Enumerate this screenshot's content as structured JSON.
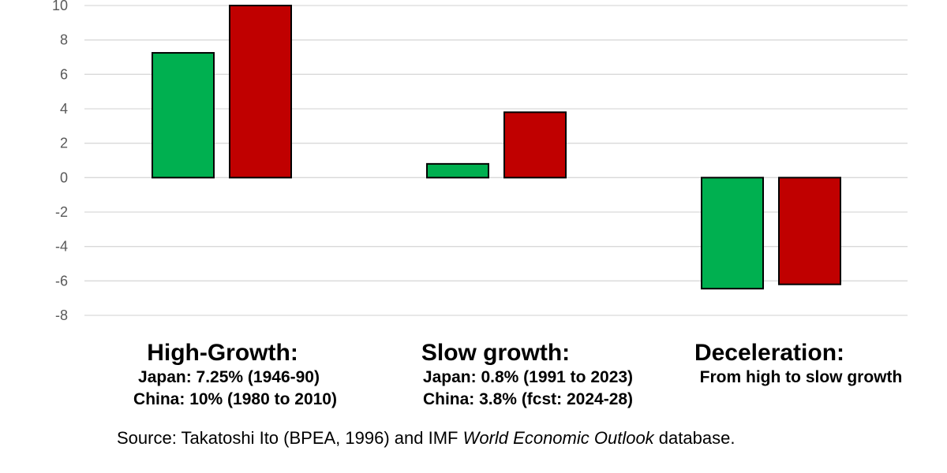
{
  "chart_data": {
    "type": "bar",
    "ylim": [
      -8,
      10
    ],
    "yticks": [
      "10",
      "8",
      "6",
      "4",
      "2",
      "0",
      "-2",
      "-4",
      "-6",
      "-8"
    ],
    "grid": true,
    "series": [
      {
        "values": [
          7.25,
          0.8,
          -6.45
        ],
        "color": "#00b050"
      },
      {
        "values": [
          10,
          3.8,
          -6.2
        ],
        "color": "#c00000"
      }
    ],
    "groups": [
      {
        "title": "High-Growth:",
        "lines": [
          "Japan: 7.25% (1946-90)",
          "China: 10% (1980 to 2010)"
        ]
      },
      {
        "title": "Slow growth:",
        "lines": [
          "Japan: 0.8% (1991 to 2023)",
          "China: 3.8% (fcst: 2024-28)"
        ]
      },
      {
        "title": "Deceleration:",
        "lines": [
          "From high to slow growth"
        ]
      }
    ]
  },
  "source": {
    "prefix": "Source: Takatoshi Ito (BPEA, 1996) and IMF ",
    "italic": "World Economic Outlook",
    "suffix": " database."
  }
}
